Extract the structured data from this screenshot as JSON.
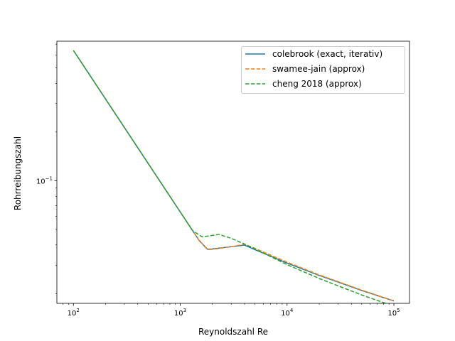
{
  "chart_data": {
    "type": "line",
    "x_scale": "log",
    "y_scale": "log",
    "xlabel": "Reynoldszahl Re",
    "ylabel": "Rohrreibungszahl",
    "xlim": [
      70,
      140000
    ],
    "ylim": [
      0.0174,
      0.73
    ],
    "x_tick_labels": [
      {
        "value": 100,
        "base": "10",
        "exp": "2"
      },
      {
        "value": 1000,
        "base": "10",
        "exp": "3"
      },
      {
        "value": 10000,
        "base": "10",
        "exp": "4"
      },
      {
        "value": 100000,
        "base": "10",
        "exp": "5"
      }
    ],
    "y_tick_labels": [
      {
        "value": 0.1,
        "base": "10",
        "exp": "−1"
      }
    ],
    "legend_position": "upper right",
    "grid": false,
    "series": [
      {
        "name": "colebrook (exact, iterativ)",
        "color": "#1f77b4",
        "dash": "solid",
        "x": [
          100,
          200,
          500,
          1000,
          1500,
          1800,
          2000,
          3000,
          4000,
          5000,
          10000,
          20000,
          50000,
          100000
        ],
        "y": [
          0.64,
          0.32,
          0.128,
          0.064,
          0.0427,
          0.0376,
          0.0378,
          0.039,
          0.0399,
          0.0374,
          0.0309,
          0.0259,
          0.0209,
          0.018
        ]
      },
      {
        "name": "swamee-jain (approx)",
        "color": "#ff7f0e",
        "dash": "dashed",
        "x": [
          100,
          200,
          500,
          1000,
          1500,
          1800,
          2000,
          3000,
          4000,
          5000,
          10000,
          20000,
          50000,
          100000
        ],
        "y": [
          0.64,
          0.32,
          0.128,
          0.064,
          0.0427,
          0.0374,
          0.0376,
          0.039,
          0.0404,
          0.0381,
          0.0313,
          0.0261,
          0.021,
          0.018
        ]
      },
      {
        "name": "cheng 2018 (approx)",
        "color": "#2ca02c",
        "dash": "dashed",
        "x": [
          100,
          200,
          500,
          1000,
          1300,
          1600,
          2000,
          2300,
          3000,
          4000,
          5000,
          10000,
          20000,
          50000,
          100000
        ],
        "y": [
          0.64,
          0.32,
          0.128,
          0.064,
          0.0492,
          0.0449,
          0.0458,
          0.0465,
          0.044,
          0.0405,
          0.0378,
          0.0302,
          0.0248,
          0.0196,
          0.0167
        ]
      }
    ]
  }
}
